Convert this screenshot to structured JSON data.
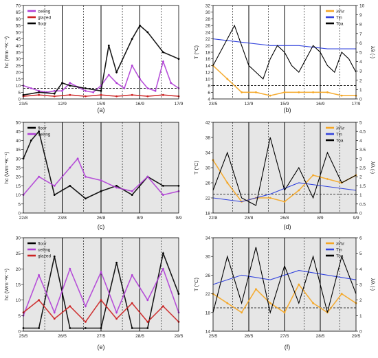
{
  "figure": {
    "panels": [
      {
        "letter": "(a)"
      },
      {
        "letter": "(b)"
      },
      {
        "letter": "(c)"
      },
      {
        "letter": "(d)"
      },
      {
        "letter": "(e)"
      },
      {
        "letter": "(f)"
      }
    ]
  },
  "chart_data": [
    {
      "type": "scatter",
      "panel": "(a)",
      "ylabel": "hc (Wm⁻²K⁻¹)",
      "ylim": [
        0,
        70
      ],
      "yticks": [
        0,
        5,
        10,
        15,
        20,
        25,
        30,
        35,
        40,
        45,
        50,
        55,
        60,
        65,
        70
      ],
      "xticklabels": [
        "23/5",
        "12/9",
        "15/9",
        "16/9",
        "17/9"
      ],
      "legend": [
        "ceiling",
        "glazed",
        "floor"
      ],
      "legend_position": "top-left",
      "reference_line": 8,
      "series": [
        {
          "name": "ceiling",
          "color": "#b03fd6",
          "x": [
            0.0,
            0.05,
            0.1,
            0.15,
            0.2,
            0.25,
            0.3,
            0.35,
            0.4,
            0.45,
            0.5,
            0.55,
            0.6,
            0.65,
            0.7,
            0.75,
            0.8,
            0.85,
            0.9,
            0.95,
            1.0
          ],
          "y": [
            10,
            8,
            6,
            5,
            6,
            6,
            12,
            9,
            6,
            5,
            10,
            18,
            12,
            8,
            25,
            15,
            8,
            6,
            28,
            12,
            8
          ]
        },
        {
          "name": "glazed",
          "color": "#cc2222",
          "x": [
            0.0,
            0.1,
            0.2,
            0.3,
            0.4,
            0.5,
            0.6,
            0.7,
            0.8,
            0.9,
            1.0
          ],
          "y": [
            2,
            3,
            2,
            3,
            2,
            3,
            2,
            3,
            2,
            3,
            2
          ]
        },
        {
          "name": "floor",
          "color": "#000000",
          "x": [
            0.0,
            0.1,
            0.2,
            0.25,
            0.3,
            0.4,
            0.5,
            0.55,
            0.6,
            0.7,
            0.75,
            0.8,
            0.9,
            1.0
          ],
          "y": [
            3,
            5,
            4,
            12,
            10,
            8,
            6,
            40,
            20,
            45,
            55,
            50,
            35,
            30
          ]
        }
      ]
    },
    {
      "type": "line",
      "panel": "(b)",
      "ylabel": "T (°C)",
      "y2label": "λ/λ (-)",
      "ylim": [
        4,
        32
      ],
      "yticks": [
        4,
        6,
        8,
        10,
        12,
        14,
        16,
        18,
        20,
        22,
        24,
        26,
        28,
        30,
        32
      ],
      "y2lim": [
        0,
        10
      ],
      "y2ticks": [
        0,
        1,
        2,
        3,
        4,
        5,
        6,
        7,
        8,
        9,
        10
      ],
      "xticklabels": [
        "23/5",
        "12/9",
        "15/9",
        "16/9",
        "17/9"
      ],
      "legend": [
        "λt/λr",
        "Tin",
        "Toa"
      ],
      "legend_position": "top-right",
      "reference_line": 8,
      "series": [
        {
          "name": "λt/λr",
          "color": "#f5a623",
          "x": [
            0.0,
            0.1,
            0.2,
            0.3,
            0.4,
            0.5,
            0.6,
            0.7,
            0.8,
            0.9,
            1.0
          ],
          "y": [
            14,
            10,
            6,
            6,
            5,
            6,
            6,
            6,
            6,
            5,
            5
          ]
        },
        {
          "name": "Tin",
          "color": "#3344dd",
          "x": [
            0.0,
            0.2,
            0.4,
            0.6,
            0.8,
            1.0
          ],
          "y": [
            22,
            21,
            20,
            20,
            19,
            19
          ]
        },
        {
          "name": "Toa",
          "color": "#000000",
          "x": [
            0.0,
            0.05,
            0.1,
            0.15,
            0.2,
            0.25,
            0.3,
            0.35,
            0.4,
            0.45,
            0.5,
            0.55,
            0.6,
            0.65,
            0.7,
            0.75,
            0.8,
            0.85,
            0.9,
            0.95,
            1.0
          ],
          "y": [
            14,
            18,
            22,
            26,
            20,
            14,
            12,
            10,
            16,
            20,
            18,
            14,
            12,
            16,
            20,
            18,
            14,
            12,
            18,
            16,
            12
          ]
        }
      ]
    },
    {
      "type": "scatter",
      "panel": "(c)",
      "ylabel": "hc (Wm⁻²K⁻¹)",
      "ylim": [
        0,
        50
      ],
      "yticks": [
        0,
        5,
        10,
        15,
        20,
        25,
        30,
        35,
        40,
        45,
        50
      ],
      "xticklabels": [
        "22/8",
        "23/8",
        "26/8",
        "8/9",
        "9/9"
      ],
      "legend": [
        "floor",
        "ceiling"
      ],
      "reference_line": 0,
      "series": [
        {
          "name": "floor",
          "color": "#000000",
          "x": [
            0.0,
            0.05,
            0.1,
            0.2,
            0.3,
            0.4,
            0.5,
            0.6,
            0.7,
            0.8,
            0.9,
            1.0
          ],
          "y": [
            30,
            40,
            45,
            10,
            15,
            8,
            12,
            15,
            10,
            20,
            15,
            15
          ]
        },
        {
          "name": "ceiling",
          "color": "#b03fd6",
          "x": [
            0.0,
            0.1,
            0.2,
            0.3,
            0.35,
            0.4,
            0.5,
            0.6,
            0.7,
            0.8,
            0.9,
            1.0
          ],
          "y": [
            10,
            20,
            15,
            25,
            30,
            20,
            18,
            14,
            12,
            20,
            10,
            12
          ]
        }
      ]
    },
    {
      "type": "line",
      "panel": "(d)",
      "ylabel": "T (°C)",
      "y2label": "λ/λ (-)",
      "ylim": [
        18,
        42
      ],
      "yticks": [
        18,
        22,
        26,
        30,
        34,
        38,
        42
      ],
      "y2lim": [
        0,
        5
      ],
      "y2ticks": [
        0,
        0.5,
        1,
        1.5,
        2,
        2.5,
        3,
        3.5,
        4,
        4.5,
        5
      ],
      "xticklabels": [
        "22/8",
        "23/8",
        "26/8",
        "8/9",
        "9/9"
      ],
      "legend": [
        "λt/λr",
        "Tin",
        "Toa"
      ],
      "reference_line": 23,
      "series": [
        {
          "name": "λt/λr",
          "color": "#f5a623",
          "x": [
            0.0,
            0.1,
            0.2,
            0.3,
            0.4,
            0.5,
            0.6,
            0.7,
            0.8,
            0.9,
            1.0
          ],
          "y": [
            32,
            26,
            21,
            22,
            22,
            21,
            24,
            28,
            27,
            26,
            28
          ]
        },
        {
          "name": "Tin",
          "color": "#3344dd",
          "x": [
            0.0,
            0.2,
            0.4,
            0.6,
            0.8,
            1.0
          ],
          "y": [
            22,
            21,
            23,
            26,
            25,
            24
          ]
        },
        {
          "name": "Toa",
          "color": "#000000",
          "x": [
            0.0,
            0.1,
            0.2,
            0.3,
            0.4,
            0.5,
            0.6,
            0.7,
            0.8,
            0.9,
            1.0
          ],
          "y": [
            24,
            34,
            22,
            20,
            38,
            24,
            30,
            22,
            34,
            26,
            28
          ]
        }
      ]
    },
    {
      "type": "scatter",
      "panel": "(e)",
      "ylabel": "hc (Wm⁻²K⁻¹)",
      "ylim": [
        0,
        30
      ],
      "yticks": [
        0,
        5,
        10,
        15,
        20,
        25,
        30
      ],
      "xticklabels": [
        "25/5",
        "26/5",
        "27/5",
        "28/5",
        "29/5"
      ],
      "legend": [
        "floor",
        "ceiling",
        "glazed"
      ],
      "reference_line": 0,
      "series": [
        {
          "name": "floor",
          "color": "#000000",
          "x": [
            0.0,
            0.1,
            0.2,
            0.3,
            0.4,
            0.5,
            0.6,
            0.7,
            0.8,
            0.9,
            1.0
          ],
          "y": [
            1,
            1,
            24,
            1,
            1,
            1,
            22,
            1,
            1,
            25,
            12
          ]
        },
        {
          "name": "ceiling",
          "color": "#b03fd6",
          "x": [
            0.0,
            0.1,
            0.2,
            0.3,
            0.4,
            0.5,
            0.6,
            0.7,
            0.8,
            0.9,
            1.0
          ],
          "y": [
            5,
            18,
            6,
            20,
            8,
            19,
            6,
            18,
            10,
            20,
            6
          ]
        },
        {
          "name": "glazed",
          "color": "#cc2222",
          "x": [
            0.0,
            0.1,
            0.2,
            0.3,
            0.4,
            0.5,
            0.6,
            0.7,
            0.8,
            0.9,
            1.0
          ],
          "y": [
            6,
            10,
            4,
            8,
            3,
            10,
            4,
            9,
            3,
            8,
            3
          ]
        }
      ]
    },
    {
      "type": "line",
      "panel": "(f)",
      "ylabel": "T (°C)",
      "y2label": "λ/λ (-)",
      "ylim": [
        14,
        34
      ],
      "yticks": [
        14,
        18,
        22,
        26,
        30,
        34
      ],
      "y2lim": [
        0,
        6
      ],
      "y2ticks": [
        0,
        1,
        2,
        3,
        4,
        5,
        6
      ],
      "xticklabels": [
        "25/5",
        "26/5",
        "27/5",
        "28/5",
        "29/5"
      ],
      "legend": [
        "λt/λr",
        "Tin",
        "Toa"
      ],
      "legend_position": "right",
      "reference_line": 19,
      "series": [
        {
          "name": "λt/λr",
          "color": "#f5a623",
          "x": [
            0.0,
            0.1,
            0.2,
            0.3,
            0.4,
            0.5,
            0.6,
            0.7,
            0.8,
            0.9,
            1.0
          ],
          "y": [
            22,
            20,
            18,
            23,
            20,
            18,
            24,
            20,
            18,
            22,
            20
          ]
        },
        {
          "name": "Tin",
          "color": "#3344dd",
          "x": [
            0.0,
            0.2,
            0.4,
            0.6,
            0.8,
            1.0
          ],
          "y": [
            24,
            26,
            25,
            27,
            26,
            25
          ]
        },
        {
          "name": "Toa",
          "color": "#000000",
          "x": [
            0.0,
            0.1,
            0.2,
            0.3,
            0.4,
            0.5,
            0.6,
            0.7,
            0.8,
            0.9,
            1.0
          ],
          "y": [
            18,
            30,
            20,
            32,
            18,
            28,
            20,
            30,
            18,
            30,
            22
          ]
        }
      ]
    }
  ]
}
